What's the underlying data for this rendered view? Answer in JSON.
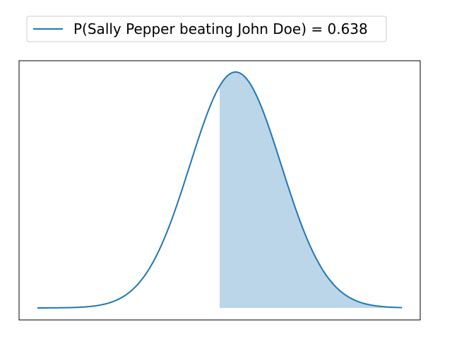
{
  "chart_data": {
    "type": "area",
    "title": "",
    "xlabel": "",
    "ylabel": "",
    "axis_ticks": "none",
    "grid": false,
    "legend_position": "top-left, outside above axes",
    "distribution": "normal",
    "mean": 0.35,
    "std": 1.0,
    "xlim": [
      -4.0,
      4.0
    ],
    "ylim": [
      0.0,
      0.42
    ],
    "shaded_from": 0.0,
    "shaded_probability": 0.638,
    "series": [
      {
        "name": "P(Sally Pepper beating John Doe) = 0.638",
        "color": "#1f77b4",
        "fill_color": "#1f77b4",
        "fill_alpha": 0.3
      }
    ]
  }
}
